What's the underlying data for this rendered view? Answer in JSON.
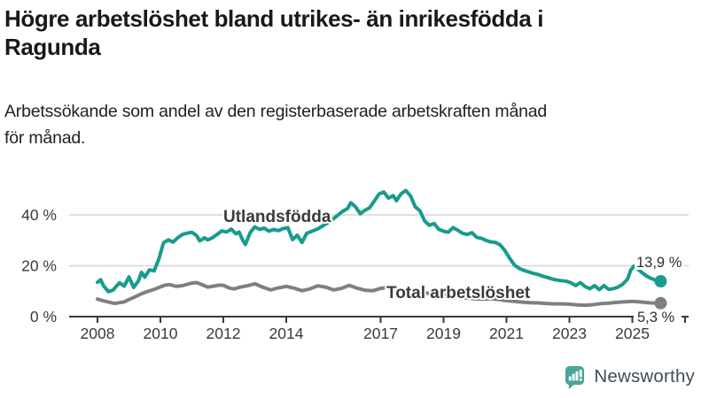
{
  "chart_data": {
    "type": "line",
    "title": "Högre arbetslöshet bland utrikes- än inrikesfödda i\nRagunda",
    "subtitle": "Arbetssökande som andel av den registerbaserade arbetskraften månad\nför månad.",
    "unit": "%",
    "grid": "horizontal",
    "grid_color": "#d6d6d6",
    "axis_color": "#3a3a3a",
    "ylim": [
      0,
      52
    ],
    "y_ticks": [
      0,
      20,
      40
    ],
    "y_tick_labels": [
      "0 %",
      "20 %",
      "40 %"
    ],
    "x_ticks": [
      2008,
      2010,
      2012,
      2014,
      2017,
      2019,
      2021,
      2023,
      2025
    ],
    "x_range_years": [
      2008,
      2026
    ],
    "series": [
      {
        "name": "Utlandsfödda",
        "color": "#189b8c",
        "end_label": "13,9 %",
        "x": [
          2008.0,
          2008.1,
          2008.2,
          2008.35,
          2008.5,
          2008.6,
          2008.7,
          2008.85,
          2009.0,
          2009.15,
          2009.3,
          2009.4,
          2009.5,
          2009.65,
          2009.8,
          2009.95,
          2010.1,
          2010.25,
          2010.4,
          2010.55,
          2010.7,
          2010.85,
          2011.0,
          2011.15,
          2011.25,
          2011.4,
          2011.5,
          2011.65,
          2011.8,
          2011.95,
          2012.1,
          2012.25,
          2012.4,
          2012.5,
          2012.62,
          2012.7,
          2012.85,
          2013.0,
          2013.15,
          2013.3,
          2013.45,
          2013.6,
          2013.75,
          2013.9,
          2014.05,
          2014.2,
          2014.35,
          2014.5,
          2014.65,
          2014.8,
          2015.0,
          2015.2,
          2015.4,
          2015.6,
          2015.8,
          2015.95,
          2016.05,
          2016.2,
          2016.35,
          2016.5,
          2016.65,
          2016.8,
          2016.95,
          2017.1,
          2017.25,
          2017.4,
          2017.5,
          2017.65,
          2017.8,
          2017.95,
          2018.1,
          2018.25,
          2018.4,
          2018.55,
          2018.7,
          2018.85,
          2019.0,
          2019.15,
          2019.3,
          2019.45,
          2019.6,
          2019.75,
          2019.9,
          2020.05,
          2020.2,
          2020.35,
          2020.5,
          2020.65,
          2020.8,
          2020.95,
          2021.1,
          2021.25,
          2021.4,
          2021.55,
          2021.7,
          2021.85,
          2022.0,
          2022.15,
          2022.3,
          2022.5,
          2022.7,
          2022.9,
          2023.05,
          2023.2,
          2023.35,
          2023.5,
          2023.65,
          2023.8,
          2023.95,
          2024.1,
          2024.25,
          2024.4,
          2024.55,
          2024.7,
          2024.85,
          2024.95,
          2025.05,
          2025.15,
          2025.3,
          2025.45,
          2025.6,
          2025.75,
          2025.9
        ],
        "values": [
          13.5,
          14.5,
          12,
          9.8,
          10.5,
          12,
          13.3,
          12,
          15.6,
          11.5,
          14,
          17.4,
          15.5,
          18.4,
          18,
          22.6,
          29,
          30.2,
          29.3,
          31,
          32.3,
          32.8,
          33.2,
          31.9,
          29.8,
          31,
          30.2,
          31,
          32.3,
          33.7,
          33.3,
          34.4,
          32.6,
          33.3,
          30,
          28.4,
          33,
          35.3,
          34.3,
          34.8,
          33.6,
          34.3,
          33.8,
          34.6,
          35,
          30.3,
          32,
          29.2,
          32.8,
          33.5,
          34.5,
          36,
          37.5,
          39.5,
          41.5,
          42.5,
          44.8,
          43.2,
          40.5,
          41.8,
          42.8,
          45.5,
          48.2,
          49,
          46.6,
          47.6,
          45.6,
          48.3,
          49.6,
          47.5,
          43.2,
          41.6,
          37.6,
          35.9,
          36.6,
          34.3,
          33.6,
          33.2,
          35,
          34,
          32.8,
          32.3,
          33,
          31.2,
          30.8,
          30,
          29.4,
          29.2,
          28.2,
          26,
          23,
          20.3,
          19,
          18.2,
          17.6,
          17,
          16.6,
          15.9,
          15.4,
          14.6,
          14.2,
          13.9,
          13.3,
          12.2,
          13.4,
          11.8,
          11,
          12.2,
          10.6,
          12.2,
          10.7,
          11,
          11.6,
          12.8,
          14.8,
          18.3,
          19.9,
          19,
          17.4,
          16,
          15,
          14.3,
          13.9
        ]
      },
      {
        "name": "Total arbetslöshet",
        "color": "#7f7f7f",
        "end_label": "5,3 %",
        "x": [
          2008.0,
          2008.2,
          2008.4,
          2008.55,
          2008.7,
          2008.85,
          2009.0,
          2009.2,
          2009.4,
          2009.6,
          2009.8,
          2010.0,
          2010.15,
          2010.3,
          2010.5,
          2010.7,
          2010.85,
          2011.0,
          2011.15,
          2011.3,
          2011.5,
          2011.7,
          2011.85,
          2012.0,
          2012.2,
          2012.35,
          2012.5,
          2012.75,
          2013.0,
          2013.25,
          2013.5,
          2013.75,
          2014.0,
          2014.25,
          2014.5,
          2014.75,
          2015.0,
          2015.25,
          2015.5,
          2015.75,
          2016.0,
          2016.25,
          2016.5,
          2016.75,
          2017.0,
          2017.2,
          2017.4,
          2017.6,
          2017.8,
          2018.0,
          2018.25,
          2018.5,
          2018.75,
          2019.0,
          2019.25,
          2019.5,
          2019.75,
          2020.0,
          2020.25,
          2020.5,
          2020.75,
          2021.0,
          2021.25,
          2021.5,
          2021.75,
          2022.0,
          2022.25,
          2022.5,
          2022.75,
          2023.0,
          2023.25,
          2023.5,
          2023.75,
          2024.0,
          2024.25,
          2024.5,
          2024.75,
          2025.0,
          2025.2,
          2025.4,
          2025.6,
          2025.9
        ],
        "values": [
          6.9,
          6.2,
          5.6,
          5.2,
          5.5,
          5.8,
          6.7,
          7.8,
          9,
          9.9,
          10.7,
          11.7,
          12.4,
          12.6,
          11.9,
          12.2,
          12.7,
          13.2,
          13.4,
          12.7,
          11.6,
          12,
          12.4,
          12.3,
          11.2,
          10.9,
          11.5,
          12.1,
          12.9,
          11.6,
          10.5,
          11.3,
          11.9,
          11.2,
          10.2,
          10.9,
          12.1,
          11.6,
          10.5,
          11.1,
          12.3,
          11.2,
          10.4,
          10.2,
          11.1,
          11.4,
          10.6,
          10.2,
          10.1,
          10.4,
          9.9,
          9.2,
          9,
          8.7,
          8.3,
          7.8,
          7.3,
          7,
          6.9,
          7.1,
          6.7,
          6.3,
          6,
          5.7,
          5.5,
          5.4,
          5.2,
          5,
          5,
          4.9,
          4.6,
          4.5,
          4.7,
          5.1,
          5.3,
          5.6,
          5.8,
          6,
          5.8,
          5.6,
          5.4,
          5.3
        ]
      }
    ]
  },
  "footer": {
    "brand": "Newsworthy",
    "logo_color": "#4ba39a",
    "text_color": "#3e4d59"
  }
}
